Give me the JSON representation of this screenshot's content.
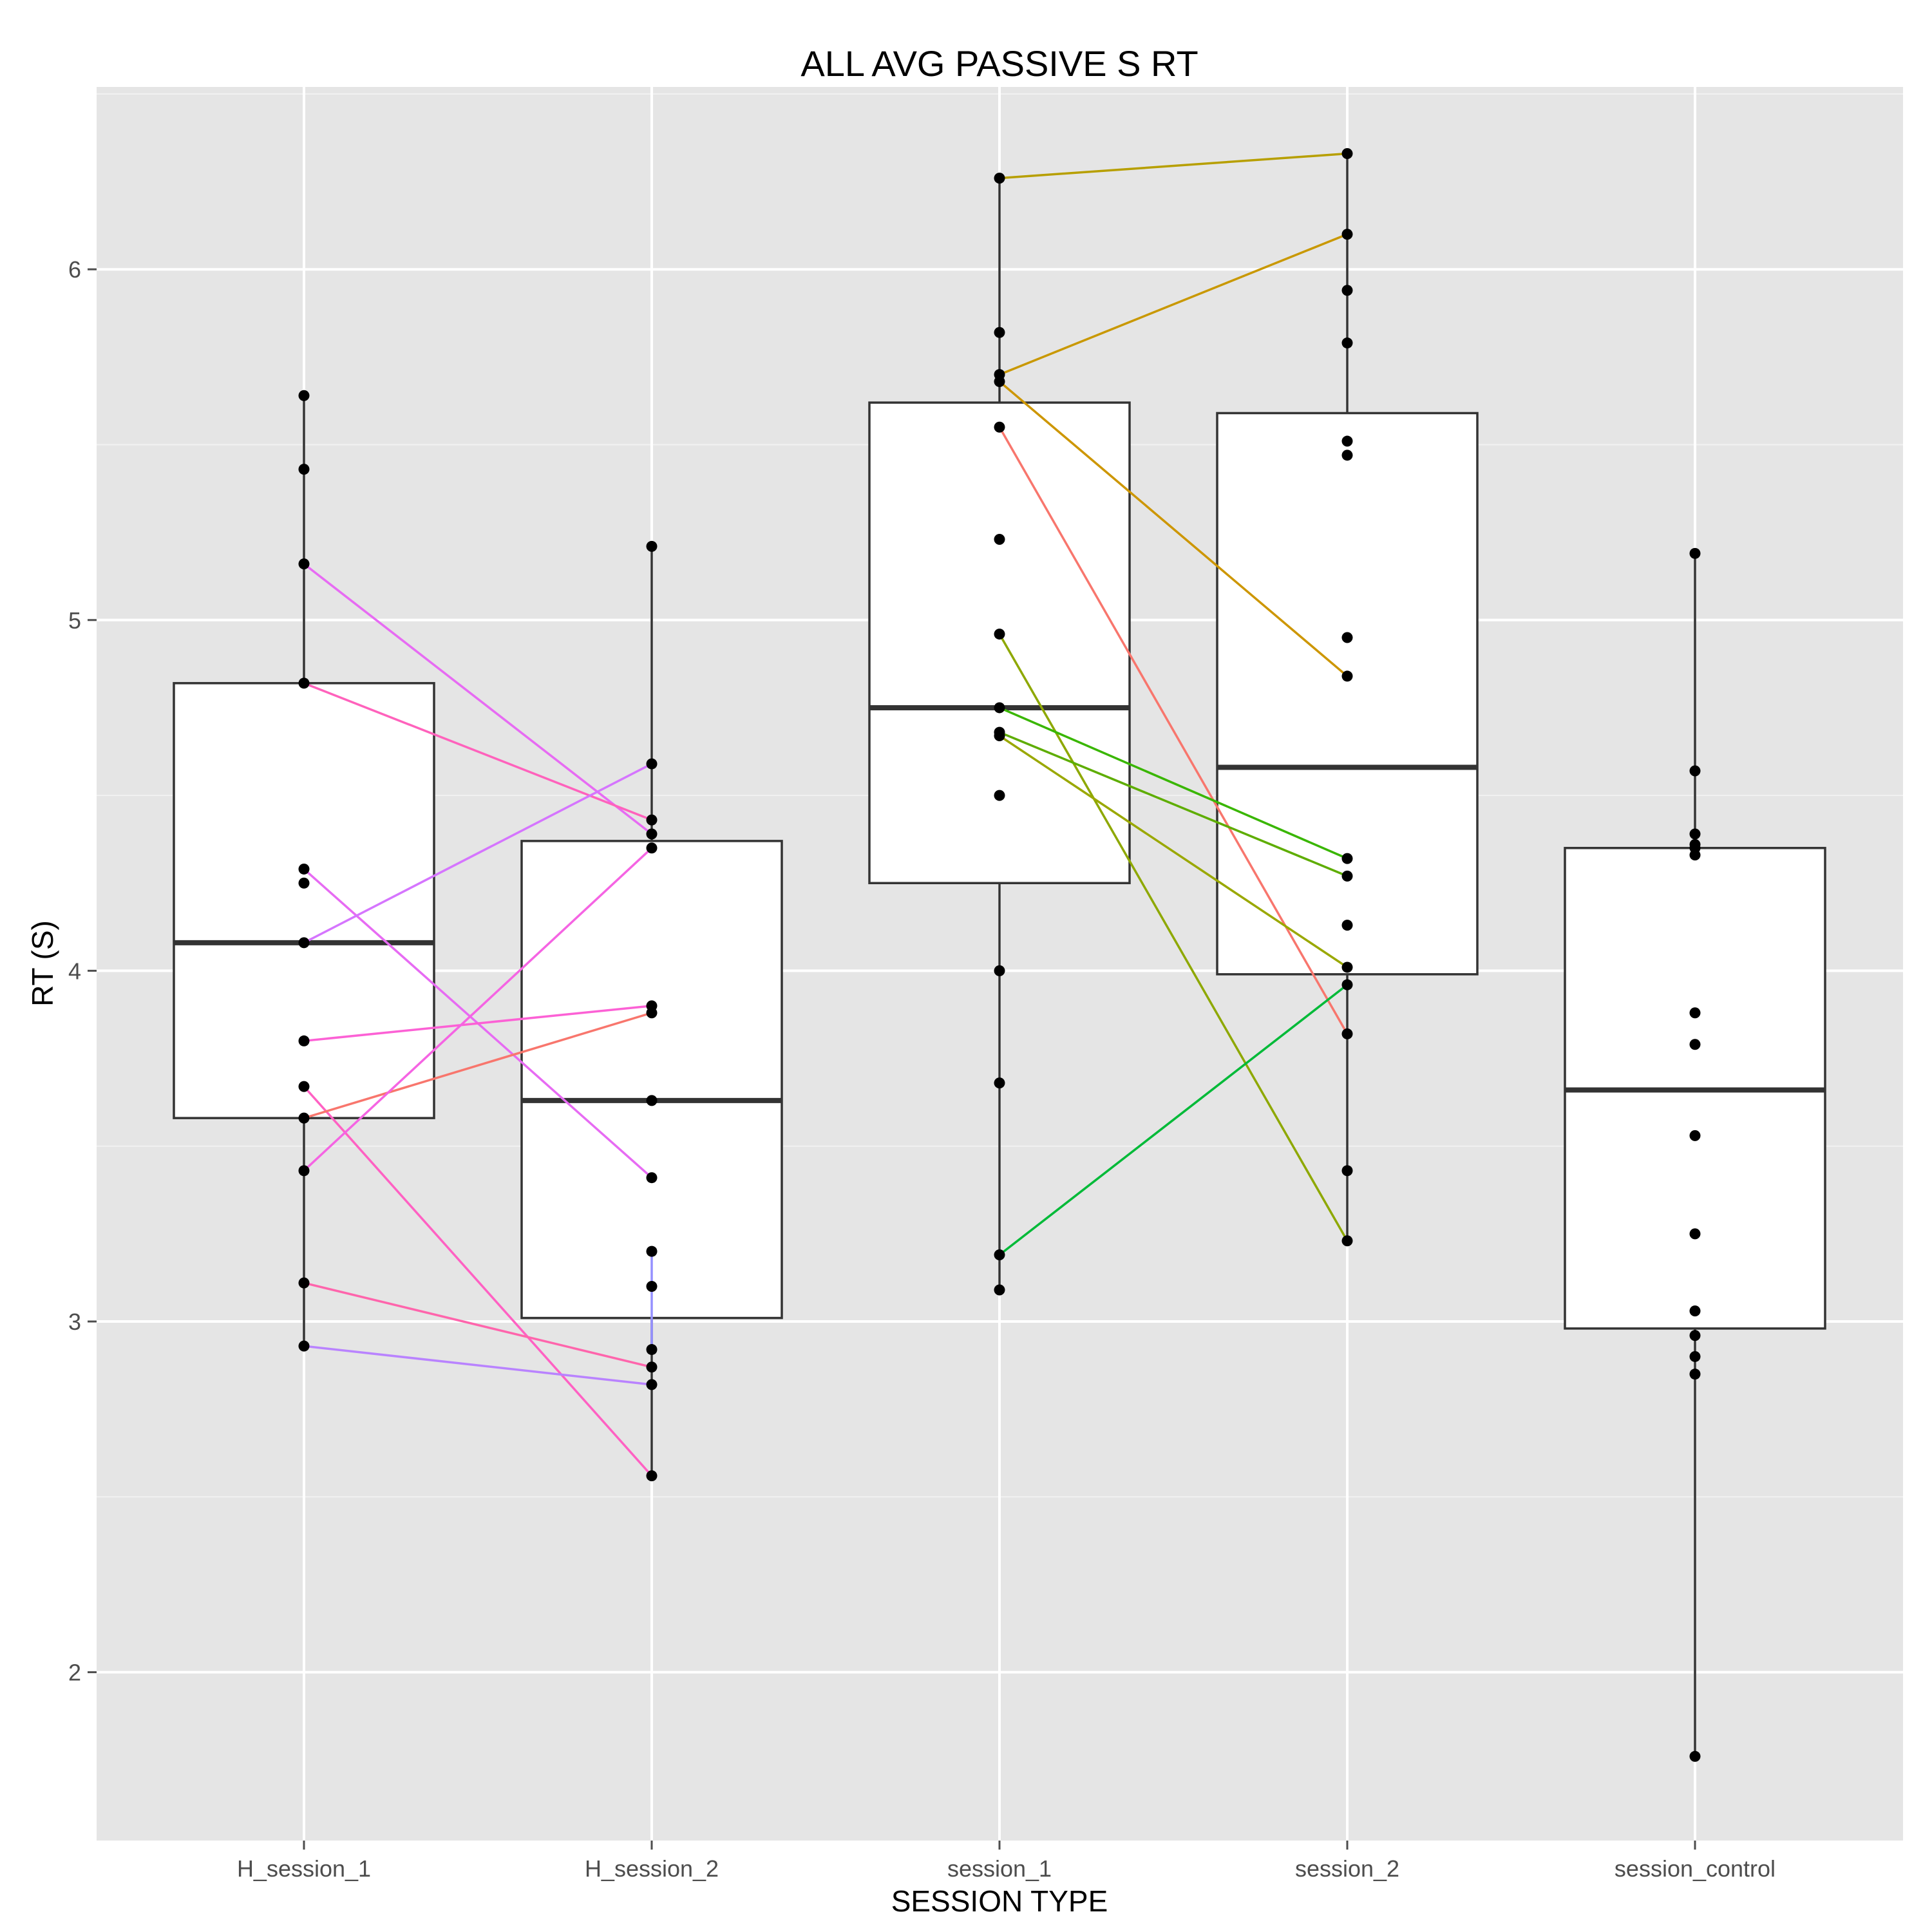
{
  "chart_data": {
    "type": "boxplot",
    "title": "ALL AVG PASSIVE S RT",
    "xlabel": "SESSION TYPE",
    "ylabel": "RT (S)",
    "ylim": [
      1.52,
      6.52
    ],
    "yticks": [
      2,
      3,
      4,
      5,
      6
    ],
    "grid": true,
    "legend": "none",
    "categories": [
      "H_session_1",
      "H_session_2",
      "session_1",
      "session_2",
      "session_control"
    ],
    "boxes": [
      {
        "category": "H_session_1",
        "q1": 3.58,
        "median": 4.08,
        "q3": 4.82,
        "whisker_low": 2.93,
        "whisker_high": 5.64
      },
      {
        "category": "H_session_2",
        "q1": 3.01,
        "median": 3.63,
        "q3": 4.37,
        "whisker_low": 2.56,
        "whisker_high": 5.21
      },
      {
        "category": "session_1",
        "q1": 4.25,
        "median": 4.75,
        "q3": 5.62,
        "whisker_low": 3.09,
        "whisker_high": 6.26
      },
      {
        "category": "session_2",
        "q1": 3.99,
        "median": 4.58,
        "q3": 5.59,
        "whisker_low": 3.23,
        "whisker_high": 6.33
      },
      {
        "category": "session_control",
        "q1": 2.98,
        "median": 3.66,
        "q3": 4.35,
        "whisker_low": 1.76,
        "whisker_high": 5.19
      }
    ],
    "points": {
      "H_session_1": [
        5.64,
        5.43,
        5.16,
        4.82,
        4.29,
        4.25,
        4.08,
        3.8,
        3.67,
        3.58,
        3.43,
        3.11,
        2.93
      ],
      "H_session_2": [
        5.21,
        4.59,
        4.43,
        4.39,
        4.35,
        3.9,
        3.88,
        3.63,
        3.41,
        3.2,
        3.1,
        2.92,
        2.87,
        2.82,
        2.56
      ],
      "session_1": [
        6.26,
        5.82,
        5.7,
        5.68,
        5.55,
        5.23,
        4.96,
        4.75,
        4.68,
        4.67,
        4.5,
        4.0,
        3.68,
        3.19,
        3.09
      ],
      "session_2": [
        6.33,
        6.1,
        5.94,
        5.79,
        5.51,
        5.47,
        4.95,
        4.84,
        4.32,
        4.27,
        4.13,
        4.01,
        3.96,
        3.82,
        3.43,
        3.23
      ],
      "session_control": [
        5.19,
        4.57,
        4.39,
        4.36,
        4.35,
        4.33,
        3.88,
        3.79,
        3.53,
        3.25,
        3.03,
        2.96,
        2.9,
        2.85,
        1.76
      ]
    },
    "pairs": [
      {
        "from": "H_session_1",
        "to": "H_session_2",
        "y1": 5.16,
        "y2": 4.39,
        "color": "#e76bf3"
      },
      {
        "from": "H_session_1",
        "to": "H_session_2",
        "y1": 4.82,
        "y2": 4.43,
        "color": "#ff62bc"
      },
      {
        "from": "H_session_1",
        "to": "H_session_2",
        "y1": 4.29,
        "y2": 3.41,
        "color": "#e76bf3"
      },
      {
        "from": "H_session_1",
        "to": "H_session_2",
        "y1": 4.08,
        "y2": 4.59,
        "color": "#d575fe"
      },
      {
        "from": "H_session_1",
        "to": "H_session_2",
        "y1": 3.8,
        "y2": 3.9,
        "color": "#fc61d5"
      },
      {
        "from": "H_session_1",
        "to": "H_session_2",
        "y1": 3.67,
        "y2": 2.56,
        "color": "#ff61c3"
      },
      {
        "from": "H_session_1",
        "to": "H_session_2",
        "y1": 3.58,
        "y2": 3.88,
        "color": "#f8766d"
      },
      {
        "from": "H_session_1",
        "to": "H_session_2",
        "y1": 3.43,
        "y2": 4.35,
        "color": "#f564e3"
      },
      {
        "from": "H_session_1",
        "to": "H_session_2",
        "y1": 3.11,
        "y2": 2.87,
        "color": "#ff65ac"
      },
      {
        "from": "H_session_1",
        "to": "H_session_2",
        "y1": 2.93,
        "y2": 2.82,
        "color": "#b983ff"
      },
      {
        "from": "H_session_2",
        "to": "H_session_2",
        "y1": 3.2,
        "y2": 2.92,
        "color": "#9590ff"
      },
      {
        "from": "session_1",
        "to": "session_2",
        "y1": 6.26,
        "y2": 6.33,
        "color": "#b79f00"
      },
      {
        "from": "session_1",
        "to": "session_2",
        "y1": 5.7,
        "y2": 6.1,
        "color": "#c99800"
      },
      {
        "from": "session_1",
        "to": "session_2",
        "y1": 5.68,
        "y2": 4.84,
        "color": "#cd9600"
      },
      {
        "from": "session_1",
        "to": "session_2",
        "y1": 5.55,
        "y2": 3.82,
        "color": "#f8766d"
      },
      {
        "from": "session_1",
        "to": "session_2",
        "y1": 4.96,
        "y2": 3.23,
        "color": "#8ea800"
      },
      {
        "from": "session_1",
        "to": "session_2",
        "y1": 4.75,
        "y2": 4.32,
        "color": "#39b600"
      },
      {
        "from": "session_1",
        "to": "session_2",
        "y1": 4.68,
        "y2": 4.27,
        "color": "#5ead00"
      },
      {
        "from": "session_1",
        "to": "session_2",
        "y1": 4.67,
        "y2": 4.01,
        "color": "#9aa800"
      },
      {
        "from": "session_1",
        "to": "session_2",
        "y1": 3.19,
        "y2": 3.96,
        "color": "#00ba38"
      }
    ]
  }
}
